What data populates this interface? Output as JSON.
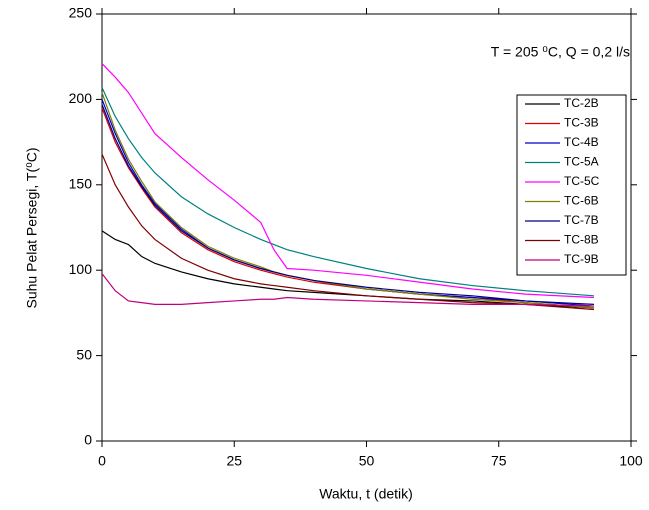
{
  "chart_data": {
    "type": "line",
    "annotation": "T = 205 ⁰C, Q = 0,2 l/s",
    "x_label": "Waktu, t (detik)",
    "y_label": "Suhu Pelat Persegi, T(⁰C)",
    "xlim": [
      0,
      100
    ],
    "xticks": [
      0,
      25,
      50,
      75,
      100
    ],
    "ylim": [
      0,
      250
    ],
    "yticks": [
      0,
      50,
      100,
      150,
      200,
      250
    ],
    "x": [
      0,
      2.5,
      5,
      7.5,
      10,
      15,
      20,
      25,
      30,
      32.5,
      35,
      40,
      50,
      60,
      70,
      80,
      93
    ],
    "legend": "upper right",
    "series": [
      {
        "name": "TC-2B",
        "color": "#000000",
        "values": [
          123,
          118,
          115,
          108,
          104,
          99,
          95,
          92,
          90,
          89,
          88,
          87,
          85,
          83,
          82,
          80,
          78
        ]
      },
      {
        "name": "TC-3B",
        "color": "#e00000",
        "values": [
          195,
          175,
          160,
          148,
          137,
          122,
          112,
          105,
          100,
          98,
          96,
          93,
          89,
          86,
          84,
          81,
          78
        ]
      },
      {
        "name": "TC-4B",
        "color": "#0000cc",
        "values": [
          200,
          180,
          163,
          150,
          139,
          124,
          113,
          106,
          101,
          99,
          97,
          94,
          89,
          86,
          84,
          82,
          79
        ]
      },
      {
        "name": "TC-5A",
        "color": "#008080",
        "values": [
          207,
          190,
          177,
          166,
          157,
          143,
          133,
          125,
          118,
          115,
          112,
          108,
          101,
          95,
          91,
          88,
          85
        ]
      },
      {
        "name": "TC-5C",
        "color": "#ff00ff",
        "values": [
          221,
          213,
          204,
          192,
          180,
          166,
          153,
          141,
          128,
          112,
          101,
          100,
          97,
          93,
          89,
          86,
          84
        ]
      },
      {
        "name": "TC-6B",
        "color": "#808000",
        "values": [
          204,
          182,
          165,
          152,
          140,
          125,
          114,
          107,
          102,
          99,
          97,
          94,
          89,
          86,
          83,
          81,
          78
        ]
      },
      {
        "name": "TC-7B",
        "color": "#000080",
        "values": [
          197,
          177,
          161,
          149,
          138,
          123,
          113,
          106,
          101,
          99,
          97,
          94,
          90,
          87,
          85,
          82,
          80
        ]
      },
      {
        "name": "TC-8B",
        "color": "#800000",
        "values": [
          168,
          150,
          137,
          126,
          118,
          107,
          100,
          95,
          92,
          91,
          90,
          88,
          85,
          83,
          81,
          80,
          77
        ]
      },
      {
        "name": "TC-9B",
        "color": "#c00080",
        "values": [
          98,
          88,
          82,
          81,
          80,
          80,
          81,
          82,
          83,
          83,
          84,
          83,
          82,
          81,
          80,
          80,
          79
        ]
      }
    ]
  }
}
